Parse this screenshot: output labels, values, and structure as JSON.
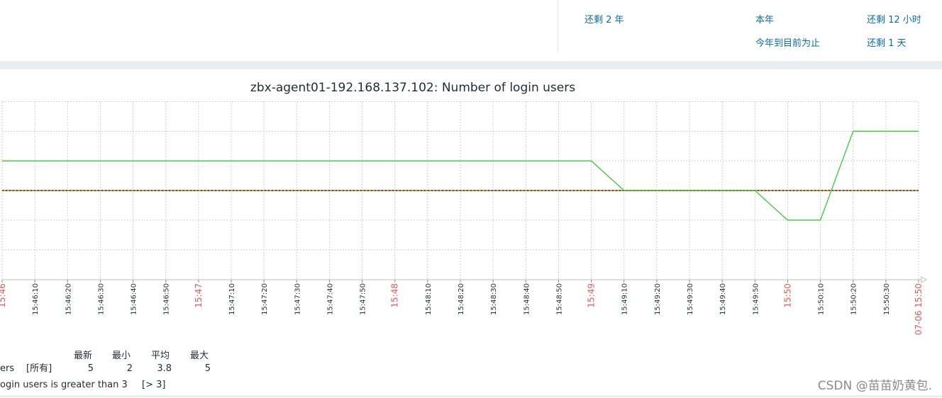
{
  "period_links": [
    "还剩 2 年",
    "本年",
    "还剩 12 小时",
    "今年到目前为止",
    "还剩 1 天"
  ],
  "chart_data": {
    "type": "line",
    "title": "zbx-agent01-192.168.137.102: Number of login users",
    "x_tick_labels": [
      "15:46",
      "15:46:10",
      "15:46:20",
      "15:46:30",
      "15:46:40",
      "15:46:50",
      "15:47",
      "15:47:10",
      "15:47:20",
      "15:47:30",
      "15:47:40",
      "15:47:50",
      "15:48",
      "15:48:10",
      "15:48:20",
      "15:48:30",
      "15:48:40",
      "15:48:50",
      "15:49",
      "15:49:10",
      "15:49:20",
      "15:49:30",
      "15:49:40",
      "15:49:50",
      "15:50",
      "15:50:10",
      "15:50:20",
      "15:50:30",
      "07-06 15:50"
    ],
    "major_ticks": [
      "15:46",
      "15:47",
      "15:48",
      "15:49",
      "15:50",
      "07-06 15:50"
    ],
    "y_range": [
      0,
      6
    ],
    "grid": true,
    "series": [
      {
        "color": "#33cc33",
        "points": [
          [
            "15:46",
            4
          ],
          [
            "15:49",
            4
          ],
          [
            "15:49:10",
            3
          ],
          [
            "15:49:50",
            3
          ],
          [
            "15:50",
            2
          ],
          [
            "15:50:10",
            2
          ],
          [
            "15:50:20",
            5
          ],
          [
            "07-06 15:50",
            5
          ]
        ]
      }
    ],
    "trigger": {
      "value": 3,
      "color": "#e08a3a",
      "text": "ogin users is greater than 3",
      "condition": "[> 3]"
    },
    "legend": {
      "headers": [
        "最新",
        "最小",
        "平均",
        "最大"
      ],
      "row": {
        "name": "ers",
        "scope": "[所有]",
        "values": [
          "5",
          "2",
          "3.8",
          "5"
        ]
      }
    }
  },
  "watermark": "CSDN @苗苗奶黄包."
}
